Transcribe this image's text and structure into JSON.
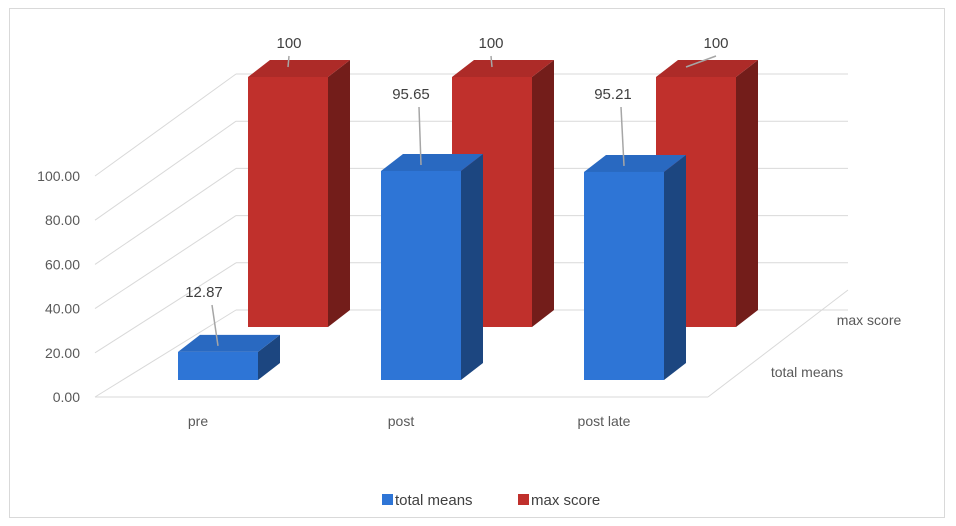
{
  "chart_data": {
    "type": "bar",
    "categories": [
      "pre",
      "post",
      "post late"
    ],
    "series": [
      {
        "name": "total means",
        "values": [
          12.87,
          95.65,
          95.21
        ],
        "color": "#2e75d6"
      },
      {
        "name": "max score",
        "values": [
          100,
          100,
          100
        ],
        "color": "#c0302c"
      }
    ],
    "data_labels": [
      [
        "12.87",
        "95.65",
        "95.21"
      ],
      [
        "100",
        "100",
        "100"
      ]
    ],
    "yticks": [
      "0.00",
      "20.00",
      "40.00",
      "60.00",
      "80.00",
      "100.00"
    ],
    "ylim": [
      0,
      100
    ],
    "depth_labels": [
      "total means",
      "max score"
    ],
    "legend_position": "bottom",
    "grid": true,
    "style": "3d-column"
  }
}
